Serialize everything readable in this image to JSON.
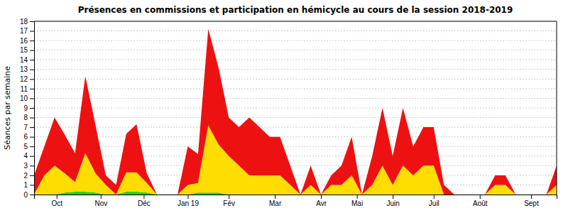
{
  "chart_data": {
    "type": "area",
    "stacked": true,
    "title": "Présences en commissions et participation en hémicycle au cours de la session 2018-2019",
    "ylabel": "Séances par semaine",
    "x": [
      0,
      1,
      2,
      3,
      4,
      5,
      6,
      7,
      8,
      9,
      10,
      11,
      12,
      13,
      14,
      15,
      16,
      17,
      18,
      19,
      20,
      21,
      22,
      23,
      24,
      25,
      26,
      27,
      28,
      29,
      30,
      31,
      32,
      33,
      34,
      35,
      36,
      37,
      38,
      39,
      40,
      41,
      42,
      43,
      44,
      45,
      46,
      47,
      48,
      49,
      50,
      51
    ],
    "series": [
      {
        "color": "#33cc00",
        "values": [
          0,
          0,
          0,
          0.2,
          0.3,
          0.3,
          0.2,
          0,
          0,
          0.3,
          0.3,
          0.2,
          0,
          0,
          0,
          0,
          0.2,
          0.2,
          0.2,
          0,
          0,
          0,
          0,
          0,
          0,
          0,
          0,
          0,
          0,
          0,
          0,
          0,
          0,
          0,
          0,
          0,
          0,
          0,
          0,
          0,
          0,
          0,
          0,
          0,
          0,
          0,
          0,
          0,
          0,
          0,
          0,
          0
        ]
      },
      {
        "color": "#ffdd00",
        "values": [
          0,
          2,
          3,
          2,
          1,
          4,
          2,
          1,
          0,
          2,
          2,
          1,
          0,
          0,
          0,
          1,
          1,
          7,
          5,
          4,
          3,
          2,
          2,
          2,
          2,
          1,
          0,
          1,
          0,
          1,
          1,
          2,
          0,
          1,
          3,
          1,
          3,
          2,
          3,
          3,
          0,
          0,
          0,
          0,
          0,
          1,
          1,
          0,
          0,
          0,
          0,
          1
        ]
      },
      {
        "color": "#ee1111",
        "values": [
          2,
          3,
          5,
          4,
          3,
          8,
          5,
          1,
          1,
          4,
          5,
          1,
          0,
          0,
          0,
          4,
          3,
          10,
          8,
          4,
          4,
          6,
          5,
          4,
          4,
          2,
          0,
          2,
          0,
          1,
          2,
          4,
          0,
          3,
          6,
          3,
          6,
          3,
          4,
          4,
          1,
          0,
          0,
          0,
          0,
          1,
          1,
          0,
          0,
          0,
          0,
          2
        ]
      }
    ],
    "xlim": [
      0,
      51
    ],
    "xticks": [
      {
        "value": 2.2,
        "label": "Oct"
      },
      {
        "value": 6.5,
        "label": "Nov"
      },
      {
        "value": 10.7,
        "label": "Déc"
      },
      {
        "value": 15.0,
        "label": "Jan 19"
      },
      {
        "value": 19.0,
        "label": "Fév"
      },
      {
        "value": 23.5,
        "label": "Mar"
      },
      {
        "value": 28.0,
        "label": "Avr"
      },
      {
        "value": 31.5,
        "label": "Mai"
      },
      {
        "value": 35.0,
        "label": "Juin"
      },
      {
        "value": 39.0,
        "label": "Juil"
      },
      {
        "value": 43.5,
        "label": "Août"
      },
      {
        "value": 48.5,
        "label": "Sept"
      }
    ],
    "ylim": [
      0,
      18
    ],
    "yticks": [
      0,
      1,
      2,
      3,
      4,
      5,
      6,
      7,
      8,
      9,
      10,
      11,
      12,
      13,
      14,
      15,
      16,
      17,
      18
    ],
    "grid": true
  }
}
